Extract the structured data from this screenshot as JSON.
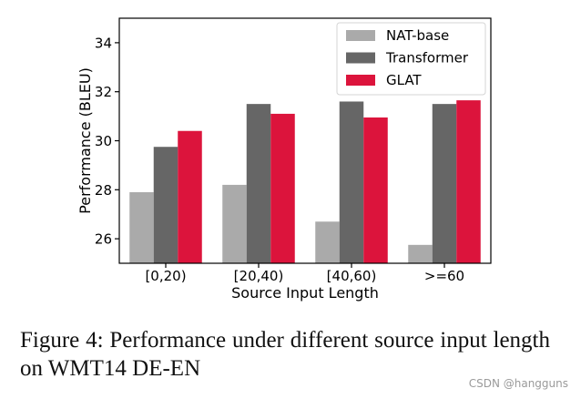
{
  "chart_data": {
    "type": "bar",
    "title": "",
    "xlabel": "Source Input Length",
    "ylabel": "Performance (BLEU)",
    "categories": [
      "[0,20)",
      "[20,40)",
      "[40,60)",
      ">=60"
    ],
    "ylim": [
      25,
      35
    ],
    "yticks": [
      26,
      28,
      30,
      32,
      34
    ],
    "grid": false,
    "legend_position": "top-right",
    "series": [
      {
        "name": "NAT-base",
        "color": "#aaaaaa",
        "values": [
          27.9,
          28.2,
          26.7,
          25.75
        ]
      },
      {
        "name": "Transformer",
        "color": "#666666",
        "values": [
          29.75,
          31.5,
          31.6,
          31.5
        ]
      },
      {
        "name": "GLAT",
        "color": "#dc143c",
        "values": [
          30.4,
          31.1,
          30.95,
          31.65
        ]
      }
    ]
  },
  "caption": {
    "text": "Figure 4:  Performance under different source input length on WMT14 DE-EN"
  },
  "watermark": {
    "text": "CSDN @hangguns"
  }
}
